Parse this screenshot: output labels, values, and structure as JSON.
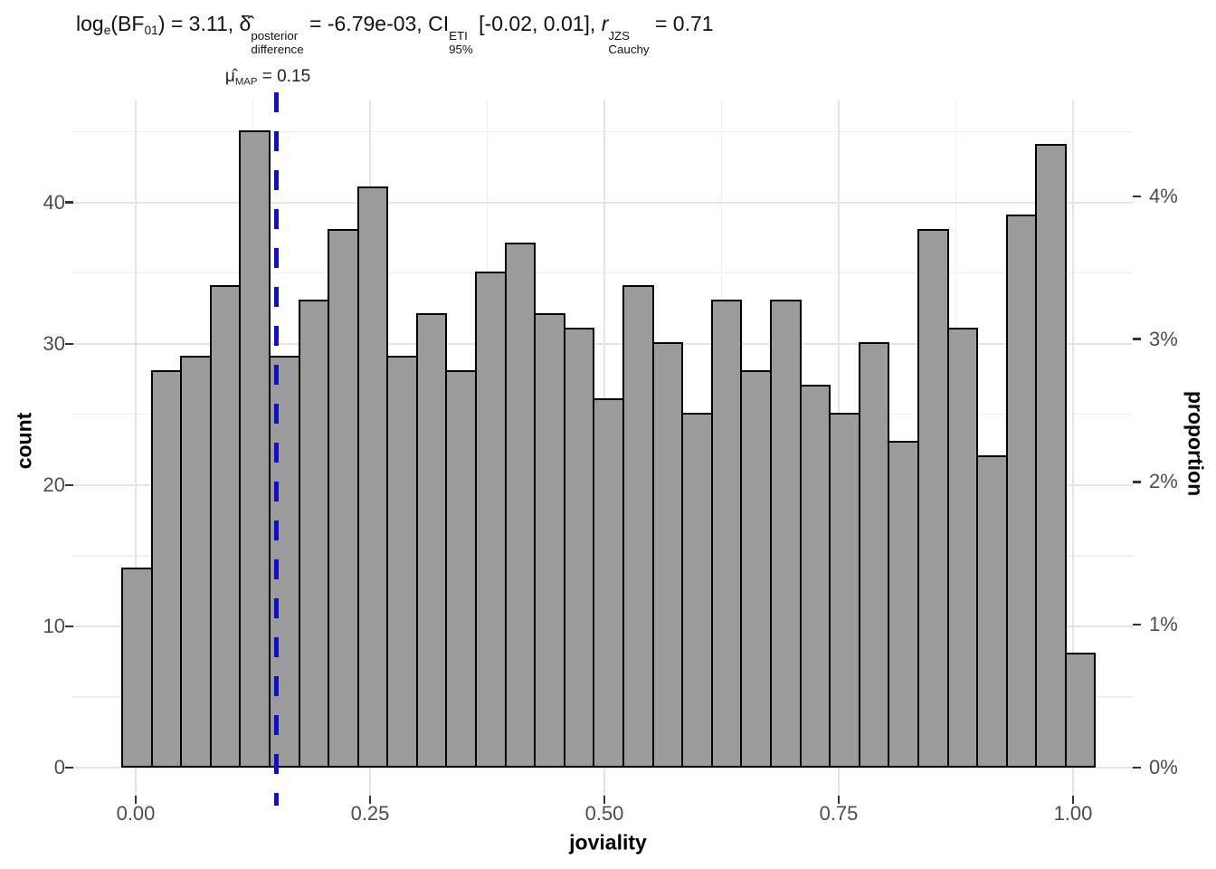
{
  "figure": {
    "title_plain": "log_e(BF_01) = 3.11, delta-hat^posterior_difference = -6.79e-03, CI^ETI_95% [-0.02, 0.01], r^JZS_Cauchy = 0.71",
    "title_segments": [
      {
        "type": "text",
        "text": "log"
      },
      {
        "type": "sub",
        "text": "e"
      },
      {
        "type": "text",
        "text": "(BF"
      },
      {
        "type": "sub",
        "text": "01"
      },
      {
        "type": "text",
        "text": ") = 3.11, "
      },
      {
        "type": "text",
        "text": "δ̂"
      },
      {
        "type": "stack",
        "sup": "posterior",
        "sub": "difference"
      },
      {
        "type": "text",
        "text": " = -6.79e-03, CI"
      },
      {
        "type": "stack",
        "sup": "ETI",
        "sub": "95%"
      },
      {
        "type": "text",
        "text": " [-0.02, 0.01], "
      },
      {
        "type": "italic",
        "text": "r"
      },
      {
        "type": "stack",
        "sup": "JZS",
        "sub": "Cauchy"
      },
      {
        "type": "text",
        "text": " = 0.71"
      }
    ],
    "map_label_plain": "μ̂_MAP = 0.15",
    "map_label_segments": [
      {
        "type": "text",
        "text": "μ̂"
      },
      {
        "type": "sub",
        "text": "MAP"
      },
      {
        "type": "text",
        "text": " = 0.15"
      }
    ]
  },
  "chart_data": {
    "type": "bar",
    "subtype": "histogram",
    "title": "log_e(BF_01) = 3.11, delta-hat^posterior_difference = -6.79e-03, CI^ETI_95% [-0.02, 0.01], r^JZS_Cauchy = 0.71",
    "xlabel": "joviality",
    "ylabel": "count",
    "ylabel_right": "proportion",
    "bin_start": -0.0154,
    "bin_width": 0.0315,
    "counts": [
      14,
      28,
      29,
      34,
      45,
      29,
      33,
      38,
      41,
      29,
      32,
      28,
      35,
      37,
      32,
      31,
      26,
      34,
      30,
      25,
      33,
      28,
      33,
      27,
      25,
      30,
      23,
      38,
      31,
      22,
      39,
      44,
      8
    ],
    "n_total": 1011,
    "x_ticks": [
      {
        "value": 0.0,
        "label": "0.00"
      },
      {
        "value": 0.25,
        "label": "0.25"
      },
      {
        "value": 0.5,
        "label": "0.50"
      },
      {
        "value": 0.75,
        "label": "0.75"
      },
      {
        "value": 1.0,
        "label": "1.00"
      }
    ],
    "x_minor_ticks": [
      0.125,
      0.375,
      0.625,
      0.875
    ],
    "y_ticks_left": [
      {
        "value": 0,
        "label": "0"
      },
      {
        "value": 10,
        "label": "10"
      },
      {
        "value": 20,
        "label": "20"
      },
      {
        "value": 30,
        "label": "30"
      },
      {
        "value": 40,
        "label": "40"
      }
    ],
    "y_minor_ticks": [
      5,
      15,
      25,
      35,
      45
    ],
    "y_ticks_right": [
      {
        "percent": 0,
        "label": "0%"
      },
      {
        "percent": 1,
        "label": "1%"
      },
      {
        "percent": 2,
        "label": "2%"
      },
      {
        "percent": 3,
        "label": "3%"
      },
      {
        "percent": 4,
        "label": "4%"
      }
    ],
    "xlim": [
      0,
      1
    ],
    "ylim_counts": [
      0,
      47
    ],
    "grid": true,
    "map_line": {
      "x": 0.15,
      "label": "μ̂_MAP = 0.15",
      "color": "#0000f0"
    },
    "bar_fill": "#9b9b9b",
    "bar_stroke": "#000000",
    "accent_blue": "#0a0af0"
  }
}
